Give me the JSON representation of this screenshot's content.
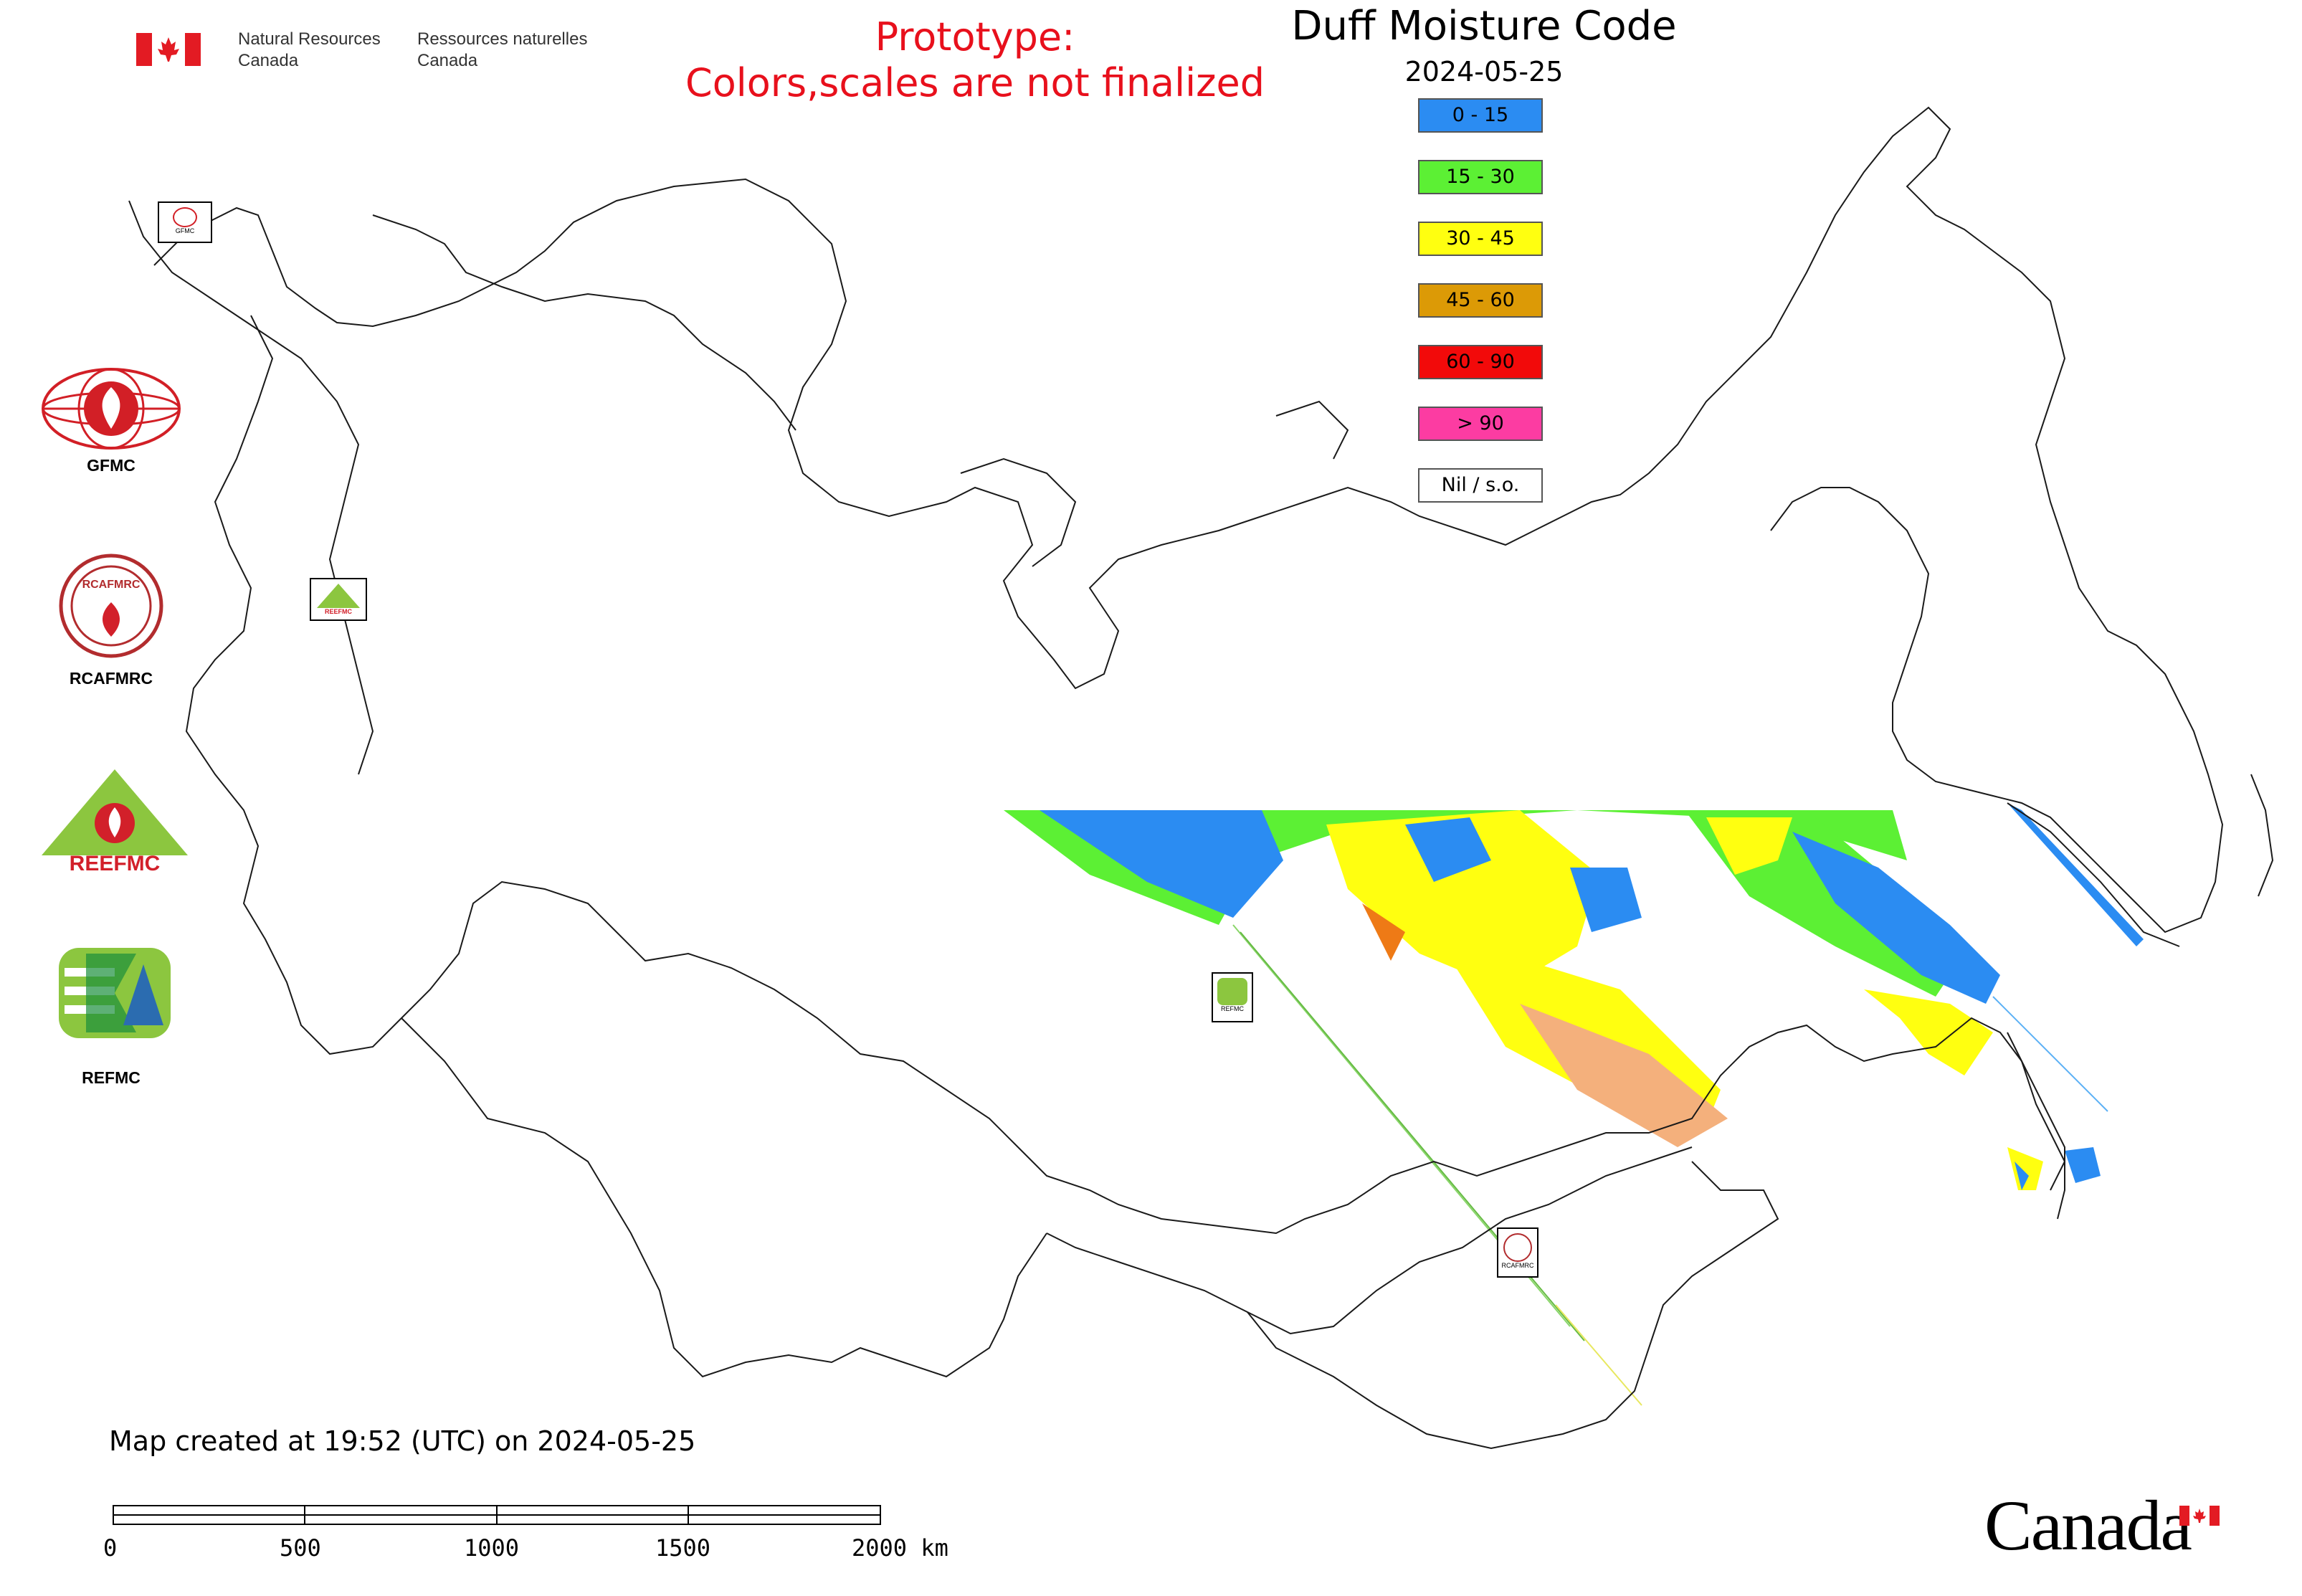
{
  "header": {
    "department_en": [
      "Natural Resources",
      "Canada"
    ],
    "department_fr": [
      "Ressources naturelles",
      "Canada"
    ],
    "prototype_line1": "Prototype:",
    "prototype_line2": "Colors,scales are not finalized"
  },
  "map": {
    "title": "Duff Moisture Code",
    "date": "2024-05-25",
    "legend": [
      {
        "label": "0 - 15",
        "color": "#2b8cf2"
      },
      {
        "label": "15 - 30",
        "color": "#5cf034"
      },
      {
        "label": "30 - 45",
        "color": "#ffff10"
      },
      {
        "label": "45 - 60",
        "color": "#dc9a06"
      },
      {
        "label": "60 - 90",
        "color": "#f20a0a"
      },
      {
        "label": "> 90",
        "color": "#fc3ca2"
      },
      {
        "label": "Nil / s.o.",
        "color": "#ffffff"
      }
    ],
    "created_text": "Map created at 19:52 (UTC) on 2024-05-25",
    "scale_labels": [
      "0",
      "500",
      "1000",
      "1500",
      "2000 km"
    ]
  },
  "organizations": [
    {
      "label": "GFMC"
    },
    {
      "label": "RCAFMRC"
    },
    {
      "label": "REEFMC"
    },
    {
      "label": "REFMC"
    }
  ],
  "map_markers": [
    {
      "label": "GFMC"
    },
    {
      "label": "REEFMC"
    },
    {
      "label": "REFMC"
    },
    {
      "label": "RCAFMRC"
    }
  ],
  "logos": {
    "rcafmrc_text": "RCAFMRC",
    "reefmc_text": "REEFMC",
    "wordmark": "Canada"
  }
}
